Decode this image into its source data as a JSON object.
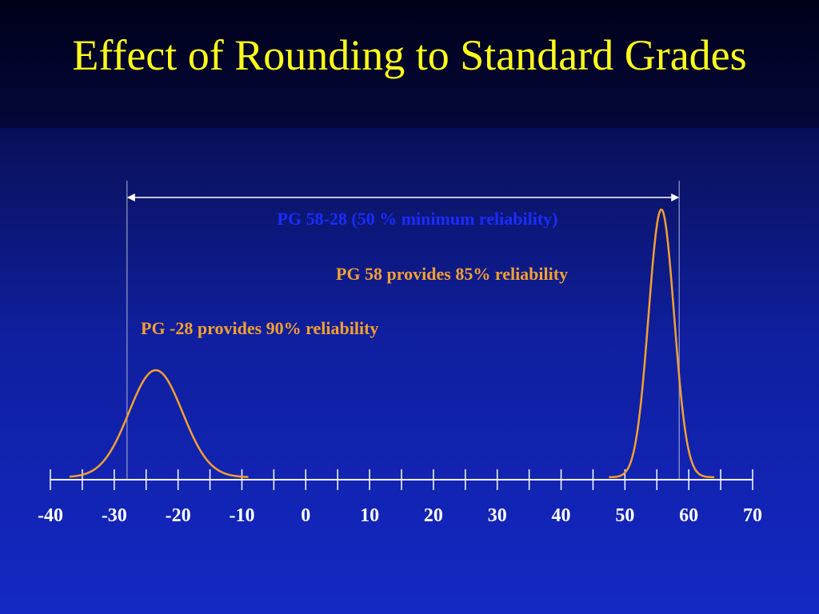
{
  "slide": {
    "title": "Effect of Rounding to Standard Grades"
  },
  "colors": {
    "title": "#ffff1a",
    "curve": "#f5a030",
    "axis": "#ffffff",
    "range_label": "#1a2cff",
    "orange_text": "#f5a030",
    "reference_line": "#9aa0c8"
  },
  "chart_data": {
    "type": "line",
    "title": "",
    "xlabel": "",
    "ylabel": "",
    "xlim": [
      -40,
      70
    ],
    "xticks": [
      -40,
      -30,
      -20,
      -10,
      0,
      10,
      20,
      30,
      40,
      50,
      60,
      70
    ],
    "minor_tick_step": 5,
    "grid": false,
    "series": [
      {
        "id": "left-curve",
        "mean": -23.5,
        "sd": 4.2,
        "x_range": [
          -37,
          -9
        ],
        "peak": 1.0
      },
      {
        "id": "right-curve",
        "mean": 55.7,
        "sd": 2.0,
        "x_range": [
          47.5,
          64
        ],
        "peak": 2.5
      }
    ],
    "reference_lines": [
      {
        "x": -28
      },
      {
        "x": 58.5
      }
    ],
    "range_arrow": {
      "x_start": -28,
      "x_end": 58.5,
      "label": "PG 58-28 (50 % minimum reliability)"
    },
    "annotations": [
      {
        "id": "pg58",
        "text": "PG 58 provides 85% reliability"
      },
      {
        "id": "pgm28",
        "text": "PG -28 provides 90% reliability"
      }
    ]
  }
}
